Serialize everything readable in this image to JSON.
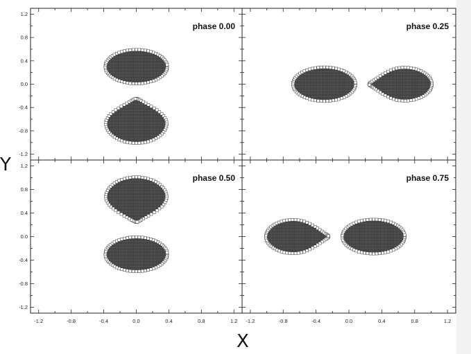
{
  "chart_data": {
    "type": "scatter",
    "xlabel": "X",
    "ylabel": "Y",
    "xlim": [
      -1.3,
      1.3
    ],
    "ylim": [
      -1.3,
      1.3
    ],
    "xticks": [
      "-1.2",
      "-0.8",
      "-0.4",
      "0.0",
      "0.4",
      "0.8",
      "1.2"
    ],
    "yticks": [
      "1.2",
      "0.8",
      "0.4",
      "0.0",
      "-0.4",
      "-0.8",
      "-1.2"
    ],
    "grid": false,
    "panels": [
      {
        "label": "phase 0.00",
        "bodies": [
          {
            "shape": "ellipse",
            "cx": 0.0,
            "cy": 0.3,
            "rx": 0.38,
            "ry": 0.29
          },
          {
            "shape": "teardrop",
            "cx": 0.0,
            "cy": -0.65,
            "rx": 0.38,
            "ry": 0.36,
            "tip": "up"
          }
        ]
      },
      {
        "label": "phase 0.25",
        "bodies": [
          {
            "shape": "ellipse",
            "cx": -0.3,
            "cy": 0.0,
            "rx": 0.38,
            "ry": 0.29
          },
          {
            "shape": "teardrop",
            "cx": 0.65,
            "cy": 0.0,
            "rx": 0.36,
            "ry": 0.29,
            "tip": "left"
          }
        ]
      },
      {
        "label": "phase 0.50",
        "bodies": [
          {
            "shape": "teardrop",
            "cx": 0.0,
            "cy": 0.65,
            "rx": 0.38,
            "ry": 0.36,
            "tip": "down"
          },
          {
            "shape": "ellipse",
            "cx": 0.0,
            "cy": -0.3,
            "rx": 0.38,
            "ry": 0.29
          }
        ]
      },
      {
        "label": "phase 0.75",
        "bodies": [
          {
            "shape": "teardrop",
            "cx": -0.65,
            "cy": 0.0,
            "rx": 0.36,
            "ry": 0.29,
            "tip": "right"
          },
          {
            "shape": "ellipse",
            "cx": 0.3,
            "cy": 0.0,
            "rx": 0.38,
            "ry": 0.29
          }
        ]
      }
    ]
  },
  "colors": {
    "frame": "#222222",
    "body_fill": "#3a3a3a",
    "mesh_line": "#bdbdbd",
    "marker_fill": "#ffffff",
    "marker_stroke": "#333333"
  }
}
